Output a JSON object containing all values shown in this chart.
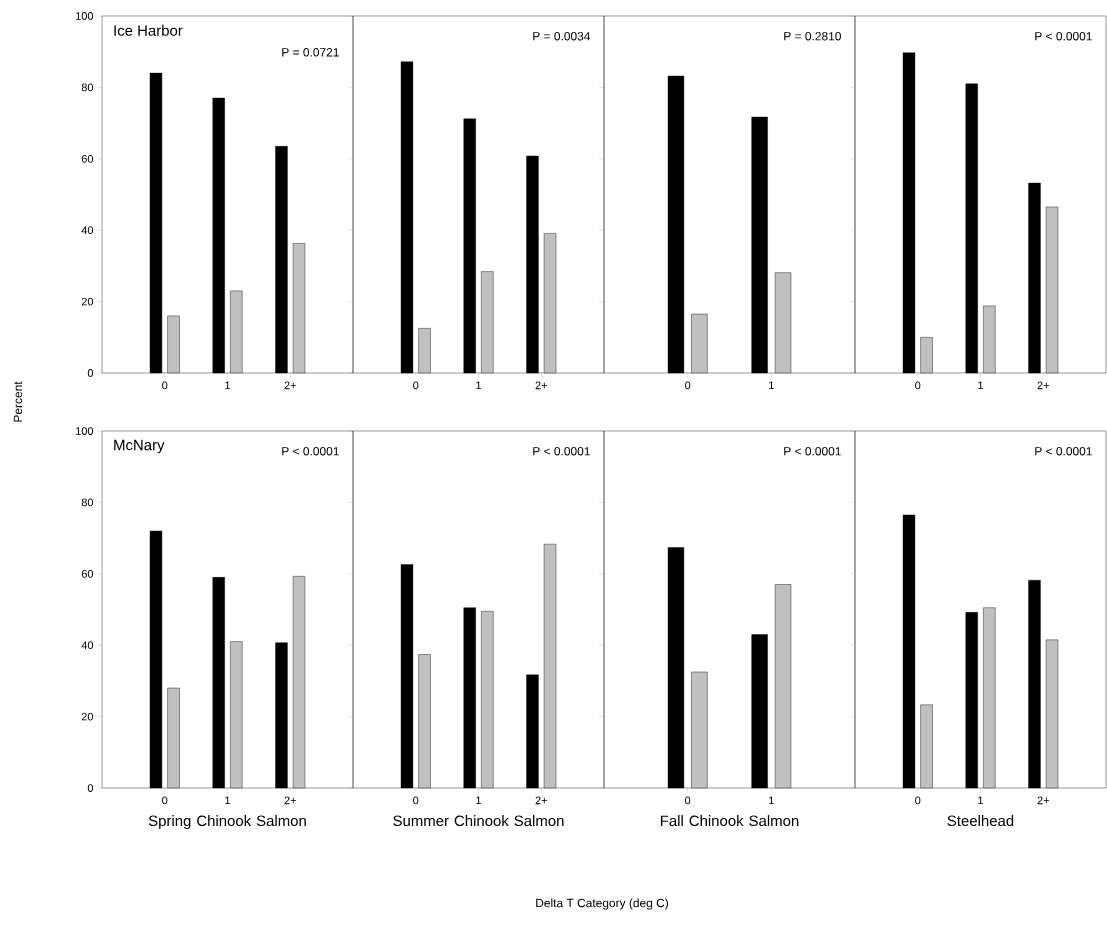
{
  "chart_data": [
    {
      "type": "bar",
      "categories": [
        "0",
        "1",
        "2+"
      ],
      "ylim": [
        0,
        100
      ],
      "yticks": [
        0,
        20,
        40,
        60,
        80,
        100
      ],
      "annotations": [
        "Ice Harbor",
        "P = 0.0721"
      ],
      "series": [
        {
          "color": "#000000",
          "values": [
            84,
            77,
            63.5
          ]
        },
        {
          "color": "#c0c0c0",
          "values": [
            16,
            23,
            36.3
          ]
        }
      ]
    },
    {
      "type": "bar",
      "categories": [
        "0",
        "1",
        "2+"
      ],
      "ylim": [
        0,
        100
      ],
      "yticks": [
        0,
        20,
        40,
        60,
        80,
        100
      ],
      "tick_labels": "x",
      "annotations": [
        "P = 0.0034"
      ],
      "series": [
        {
          "color": "#000000",
          "values": [
            87.2,
            71.2,
            60.8
          ]
        },
        {
          "color": "#c0c0c0",
          "values": [
            12.5,
            28.4,
            39.1
          ]
        }
      ]
    },
    {
      "type": "bar",
      "categories": [
        "0",
        "1"
      ],
      "ylim": [
        0,
        100
      ],
      "yticks": [
        0,
        20,
        40,
        60,
        80,
        100
      ],
      "tick_labels": "x",
      "annotations": [
        "P = 0.2810"
      ],
      "series": [
        {
          "color": "#000000",
          "values": [
            83.2,
            71.7
          ]
        },
        {
          "color": "#c0c0c0",
          "values": [
            16.5,
            28.1
          ]
        }
      ]
    },
    {
      "type": "bar",
      "categories": [
        "0",
        "1",
        "2+"
      ],
      "ylim": [
        0,
        100
      ],
      "yticks": [
        0,
        20,
        40,
        60,
        80,
        100
      ],
      "tick_labels": "x",
      "annotations": [
        "P < 0.0001"
      ],
      "series": [
        {
          "color": "#000000",
          "values": [
            89.7,
            81,
            53.2
          ]
        },
        {
          "color": "#c0c0c0",
          "values": [
            10,
            18.8,
            46.5
          ]
        }
      ]
    },
    {
      "type": "bar",
      "categories": [
        "0",
        "1",
        "2+"
      ],
      "ylim": [
        0,
        100
      ],
      "yticks": [
        0,
        20,
        40,
        60,
        80,
        100
      ],
      "xlabel": "Spring Chinook Salmon",
      "annotations": [
        "McNary",
        "P < 0.0001"
      ],
      "series": [
        {
          "color": "#000000",
          "values": [
            72,
            59,
            40.7
          ]
        },
        {
          "color": "#c0c0c0",
          "values": [
            28,
            41,
            59.3
          ]
        }
      ]
    },
    {
      "type": "bar",
      "categories": [
        "0",
        "1",
        "2+"
      ],
      "ylim": [
        0,
        100
      ],
      "yticks": [
        0,
        20,
        40,
        60,
        80,
        100
      ],
      "tick_labels": "x",
      "xlabel": "Summer Chinook Salmon",
      "annotations": [
        "P < 0.0001"
      ],
      "series": [
        {
          "color": "#000000",
          "values": [
            62.6,
            50.5,
            31.7
          ]
        },
        {
          "color": "#c0c0c0",
          "values": [
            37.4,
            49.5,
            68.3
          ]
        }
      ]
    },
    {
      "type": "bar",
      "categories": [
        "0",
        "1"
      ],
      "ylim": [
        0,
        100
      ],
      "yticks": [
        0,
        20,
        40,
        60,
        80,
        100
      ],
      "tick_labels": "x",
      "xlabel": "Fall Chinook Salmon",
      "annotations": [
        "P < 0.0001"
      ],
      "series": [
        {
          "color": "#000000",
          "values": [
            67.4,
            43.0
          ]
        },
        {
          "color": "#c0c0c0",
          "values": [
            32.5,
            57.0
          ]
        }
      ]
    },
    {
      "type": "bar",
      "categories": [
        "0",
        "1",
        "2+"
      ],
      "ylim": [
        0,
        100
      ],
      "yticks": [
        0,
        20,
        40,
        60,
        80,
        100
      ],
      "tick_labels": "x",
      "xlabel": "Steelhead",
      "annotations": [
        "P < 0.0001"
      ],
      "series": [
        {
          "color": "#000000",
          "values": [
            76.5,
            49.2,
            58.2
          ]
        },
        {
          "color": "#c0c0c0",
          "values": [
            23.3,
            50.5,
            41.5
          ]
        }
      ]
    },
    {
      "type": "other",
      "ylabel": "Percent",
      "xlabel": "Delta T Category (deg C)"
    }
  ]
}
